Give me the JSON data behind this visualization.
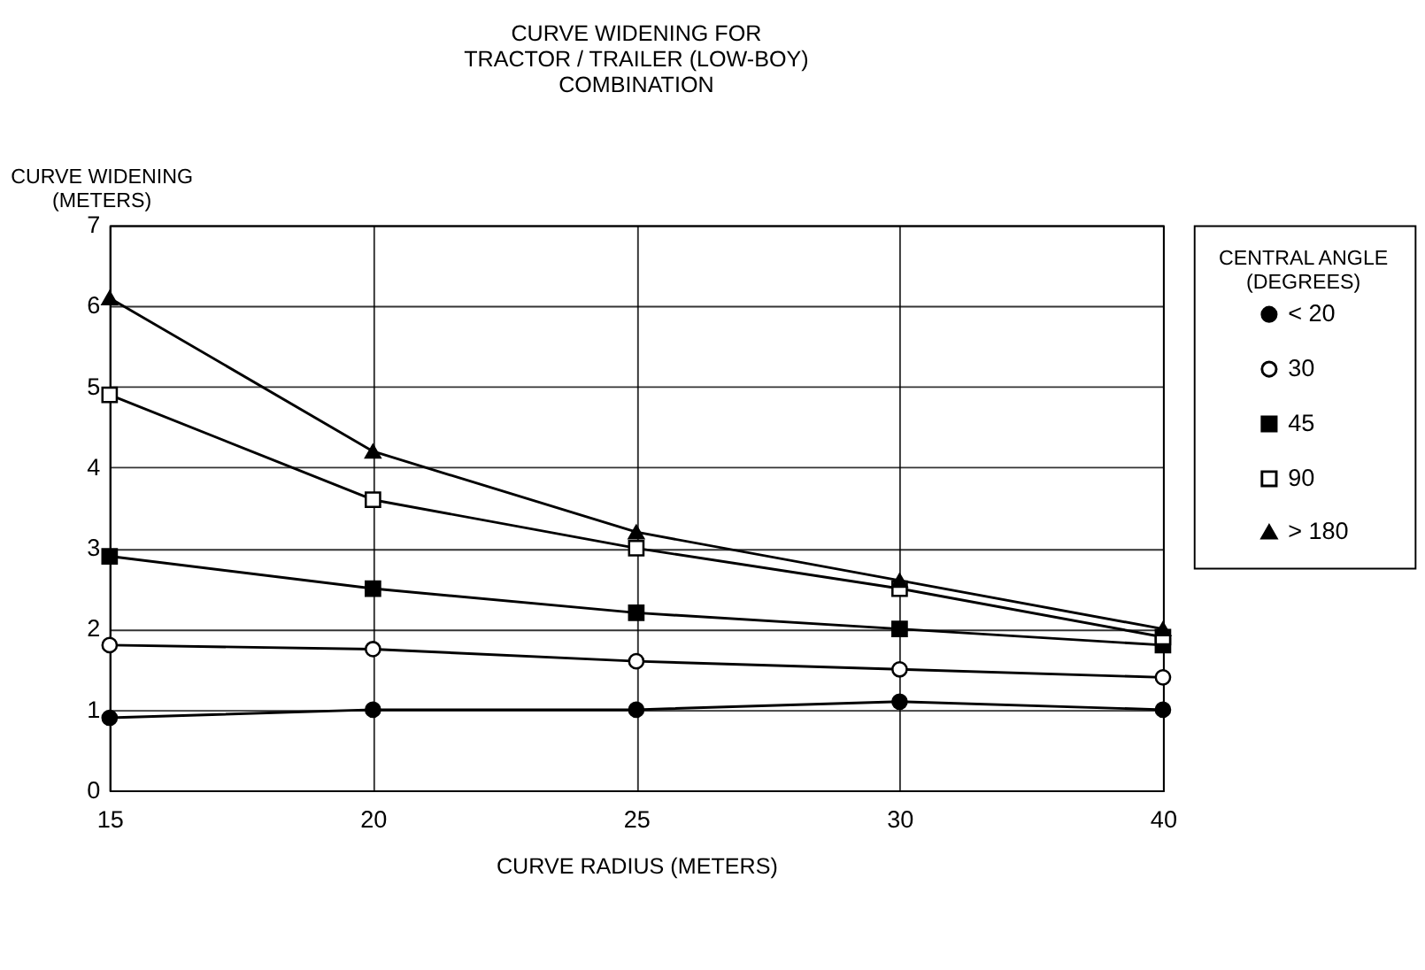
{
  "chart_data": {
    "type": "line",
    "title": "CURVE WIDENING FOR\nTRACTOR / TRAILER  (LOW-BOY)\nCOMBINATION",
    "xlabel": "CURVE RADIUS  (METERS)",
    "ylabel": "CURVE WIDENING\n(METERS)",
    "legend_title": "CENTRAL ANGLE\n(DEGREES)",
    "categories": [
      "15",
      "20",
      "25",
      "30",
      "40"
    ],
    "ylim": [
      0,
      7
    ],
    "yticks": [
      0,
      1,
      2,
      3,
      4,
      5,
      6,
      7
    ],
    "grid": true,
    "legend": "right",
    "series": [
      {
        "name": "< 20",
        "color": "#000000",
        "marker": "circle",
        "values": [
          0.9,
          1.0,
          1.0,
          1.1,
          1.0
        ]
      },
      {
        "name": "30",
        "color": "#000000",
        "marker": "circle-open",
        "values": [
          1.8,
          1.75,
          1.6,
          1.5,
          1.4
        ]
      },
      {
        "name": "45",
        "color": "#000000",
        "marker": "square",
        "values": [
          2.9,
          2.5,
          2.2,
          2.0,
          1.8
        ]
      },
      {
        "name": "90",
        "color": "#000000",
        "marker": "square-open",
        "values": [
          4.9,
          3.6,
          3.0,
          2.5,
          1.9
        ]
      },
      {
        "name": "> 180",
        "color": "#000000",
        "marker": "triangle",
        "values": [
          6.1,
          4.2,
          3.2,
          2.6,
          2.0
        ]
      }
    ]
  }
}
